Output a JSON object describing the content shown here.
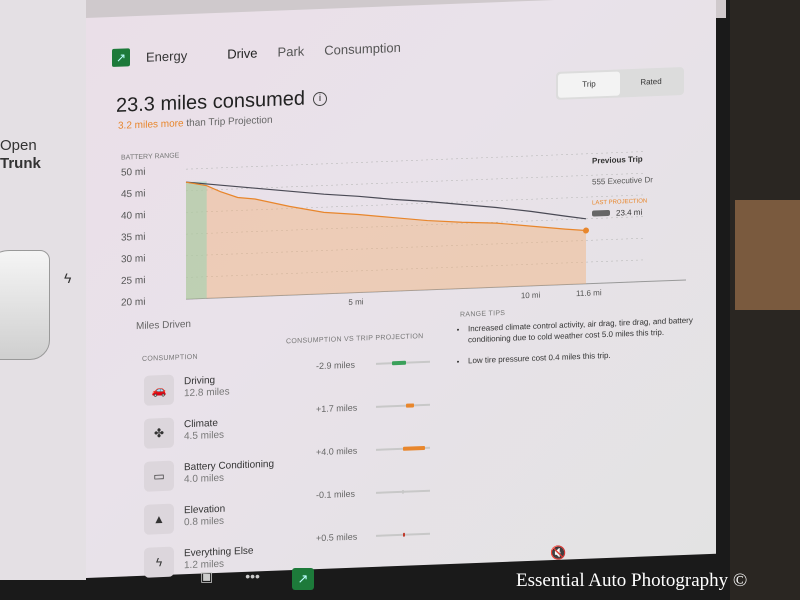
{
  "left_panel": {
    "trunk_line1": "Open",
    "trunk_line2": "Trunk"
  },
  "header": {
    "app": "Energy",
    "tabs": [
      {
        "label": "Drive",
        "active": true
      },
      {
        "label": "Park",
        "active": false
      },
      {
        "label": "Consumption",
        "active": false
      }
    ]
  },
  "summary": {
    "title": "23.3 miles consumed",
    "delta": "3.2 miles more",
    "delta_suffix": " than Trip Projection"
  },
  "toggle": {
    "options": [
      "Trip",
      "Rated"
    ],
    "selected": "Trip"
  },
  "side": {
    "previous_trip": "Previous Trip",
    "destination": "555 Executive Dr",
    "last_projection_label": "LAST PROJECTION",
    "last_projection_value": "23.4 mi"
  },
  "chart_data": {
    "type": "line",
    "ylabel": "BATTERY RANGE",
    "xlabel": "Miles Driven",
    "ylim": [
      20,
      50
    ],
    "xlim": [
      0,
      11.6
    ],
    "yticks": [
      "20 mi",
      "25 mi",
      "30 mi",
      "35 mi",
      "40 mi",
      "45 mi",
      "50 mi"
    ],
    "xticks": [
      {
        "v": 5,
        "label": "5 mi"
      },
      {
        "v": 10,
        "label": "10 mi"
      },
      {
        "v": 11.6,
        "label": "11.6 mi"
      }
    ],
    "series": [
      {
        "role": "projection",
        "color": "#4a4a55",
        "x": [
          0,
          0.8,
          2,
          3,
          4,
          5,
          6,
          7,
          8,
          9,
          10,
          11,
          11.6
        ],
        "y": [
          47,
          46.2,
          45,
          44,
          43,
          42.2,
          41.2,
          40.4,
          39.4,
          38.4,
          37.2,
          35.8,
          35
        ]
      },
      {
        "role": "actual",
        "color": "#e8862c",
        "x": [
          0,
          0.6,
          1,
          1.5,
          2,
          3,
          4,
          5,
          6,
          7,
          8,
          9,
          10,
          11,
          11.6
        ],
        "y": [
          47,
          46,
          44.5,
          43,
          42.5,
          40.5,
          38.8,
          38,
          37,
          36,
          35.3,
          34.8,
          33.8,
          32.8,
          32.3
        ]
      }
    ]
  },
  "consumption": {
    "header": "CONSUMPTION",
    "vs_header": "CONSUMPTION VS TRIP PROJECTION",
    "items": [
      {
        "name": "Driving",
        "value": "12.8 miles",
        "delta": "-2.9 miles",
        "icon": "car-icon",
        "bar_color": "#3aa05a",
        "bar_from": 0.3,
        "bar_to": 0.55
      },
      {
        "name": "Climate",
        "value": "4.5 miles",
        "delta": "+1.7 miles",
        "icon": "fan-icon",
        "bar_color": "#e8862c",
        "bar_from": 0.55,
        "bar_to": 0.7
      },
      {
        "name": "Battery Conditioning",
        "value": "4.0 miles",
        "delta": "+4.0 miles",
        "icon": "battery-icon",
        "bar_color": "#e8862c",
        "bar_from": 0.5,
        "bar_to": 0.9
      },
      {
        "name": "Elevation",
        "value": "0.8 miles",
        "delta": "-0.1 miles",
        "icon": "mountain-icon",
        "bar_color": "#c8c8c8",
        "bar_from": 0.49,
        "bar_to": 0.5
      },
      {
        "name": "Everything Else",
        "value": "1.2 miles",
        "delta": "+0.5 miles",
        "icon": "bolt-icon",
        "bar_color": "#c0392b",
        "bar_from": 0.5,
        "bar_to": 0.54
      }
    ]
  },
  "range_tips": {
    "header": "RANGE TIPS",
    "items": [
      "Increased climate control activity, air drag, tire drag, and battery conditioning due to cold weather cost 5.0 miles this trip.",
      "Low tire pressure cost 0.4 miles this trip."
    ]
  },
  "watermark": "Essential Auto Photography ©"
}
